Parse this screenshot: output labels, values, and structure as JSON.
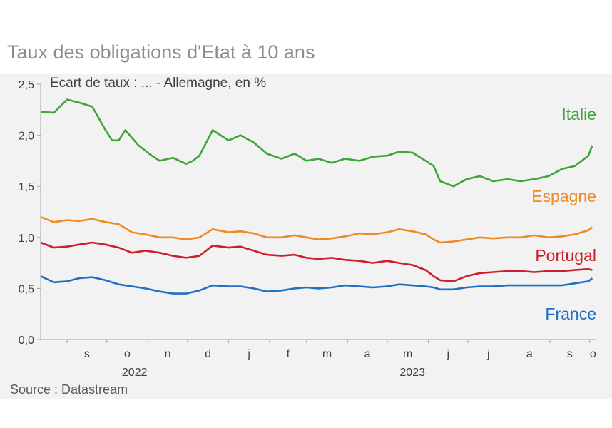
{
  "title": "Taux des obligations d'Etat à 10 ans",
  "source": "Source : Datastream",
  "chart_data": {
    "type": "line",
    "subtitle": "Ecart de taux : ... - Allemagne, en %",
    "ylim": [
      0,
      2.5
    ],
    "yticks": [
      "0,0",
      "0,5",
      "1,0",
      "1,5",
      "2,0",
      "2,5"
    ],
    "ytick_values": [
      0,
      0.5,
      1.0,
      1.5,
      2.0,
      2.5
    ],
    "x_range": [
      "2022-08-12",
      "2023-10-06"
    ],
    "month_ticks": [
      "s",
      "o",
      "n",
      "d",
      "j",
      "f",
      "m",
      "a",
      "m",
      "j",
      "j",
      "a",
      "s",
      "o"
    ],
    "years": [
      "2022",
      "2023"
    ],
    "grid": false,
    "series": [
      {
        "name": "Italie",
        "color": "#3ea639",
        "x": [
          "2022-08-12",
          "2022-08-22",
          "2022-09-01",
          "2022-09-10",
          "2022-09-20",
          "2022-09-30",
          "2022-10-05",
          "2022-10-10",
          "2022-10-15",
          "2022-10-25",
          "2022-11-04",
          "2022-11-10",
          "2022-11-20",
          "2022-11-30",
          "2022-12-05",
          "2022-12-10",
          "2022-12-20",
          "2023-01-01",
          "2023-01-10",
          "2023-01-20",
          "2023-01-30",
          "2023-02-10",
          "2023-02-20",
          "2023-03-01",
          "2023-03-10",
          "2023-03-20",
          "2023-03-30",
          "2023-04-10",
          "2023-04-20",
          "2023-05-01",
          "2023-05-10",
          "2023-05-20",
          "2023-05-30",
          "2023-06-05",
          "2023-06-10",
          "2023-06-20",
          "2023-06-30",
          "2023-07-10",
          "2023-07-20",
          "2023-07-31",
          "2023-08-10",
          "2023-08-20",
          "2023-08-31",
          "2023-09-10",
          "2023-09-20",
          "2023-09-30",
          "2023-10-03"
        ],
        "values": [
          2.23,
          2.22,
          2.35,
          2.32,
          2.28,
          2.05,
          1.95,
          1.95,
          2.05,
          1.9,
          1.8,
          1.75,
          1.78,
          1.72,
          1.75,
          1.8,
          2.05,
          1.95,
          2.0,
          1.93,
          1.82,
          1.77,
          1.82,
          1.75,
          1.77,
          1.73,
          1.77,
          1.75,
          1.79,
          1.8,
          1.84,
          1.83,
          1.75,
          1.7,
          1.55,
          1.5,
          1.57,
          1.6,
          1.55,
          1.57,
          1.55,
          1.57,
          1.6,
          1.67,
          1.7,
          1.8,
          1.9
        ]
      },
      {
        "name": "Espagne",
        "color": "#ee8a21",
        "x": [
          "2022-08-12",
          "2022-08-22",
          "2022-09-01",
          "2022-09-10",
          "2022-09-20",
          "2022-09-30",
          "2022-10-10",
          "2022-10-20",
          "2022-10-30",
          "2022-11-10",
          "2022-11-20",
          "2022-11-30",
          "2022-12-10",
          "2022-12-20",
          "2023-01-01",
          "2023-01-10",
          "2023-01-20",
          "2023-01-30",
          "2023-02-10",
          "2023-02-20",
          "2023-03-01",
          "2023-03-10",
          "2023-03-20",
          "2023-03-30",
          "2023-04-10",
          "2023-04-20",
          "2023-05-01",
          "2023-05-10",
          "2023-05-20",
          "2023-05-30",
          "2023-06-05",
          "2023-06-10",
          "2023-06-20",
          "2023-06-30",
          "2023-07-10",
          "2023-07-20",
          "2023-07-31",
          "2023-08-10",
          "2023-08-20",
          "2023-08-31",
          "2023-09-10",
          "2023-09-20",
          "2023-09-30",
          "2023-10-03"
        ],
        "values": [
          1.2,
          1.15,
          1.17,
          1.16,
          1.18,
          1.15,
          1.13,
          1.05,
          1.03,
          1.0,
          1.0,
          0.98,
          1.0,
          1.08,
          1.05,
          1.06,
          1.04,
          1.0,
          1.0,
          1.02,
          1.0,
          0.98,
          0.99,
          1.01,
          1.04,
          1.03,
          1.05,
          1.08,
          1.06,
          1.03,
          0.98,
          0.95,
          0.96,
          0.98,
          1.0,
          0.99,
          1.0,
          1.0,
          1.02,
          1.0,
          1.01,
          1.03,
          1.07,
          1.1
        ]
      },
      {
        "name": "Portugal",
        "color": "#cc1f2b",
        "x": [
          "2022-08-12",
          "2022-08-22",
          "2022-09-01",
          "2022-09-10",
          "2022-09-20",
          "2022-09-30",
          "2022-10-10",
          "2022-10-20",
          "2022-10-30",
          "2022-11-10",
          "2022-11-20",
          "2022-11-30",
          "2022-12-10",
          "2022-12-20",
          "2023-01-01",
          "2023-01-10",
          "2023-01-20",
          "2023-01-30",
          "2023-02-10",
          "2023-02-20",
          "2023-03-01",
          "2023-03-10",
          "2023-03-20",
          "2023-03-30",
          "2023-04-10",
          "2023-04-20",
          "2023-05-01",
          "2023-05-10",
          "2023-05-20",
          "2023-05-30",
          "2023-06-05",
          "2023-06-10",
          "2023-06-20",
          "2023-06-30",
          "2023-07-10",
          "2023-07-20",
          "2023-07-31",
          "2023-08-10",
          "2023-08-20",
          "2023-08-31",
          "2023-09-10",
          "2023-09-20",
          "2023-09-30",
          "2023-10-03"
        ],
        "values": [
          0.95,
          0.9,
          0.91,
          0.93,
          0.95,
          0.93,
          0.9,
          0.85,
          0.87,
          0.85,
          0.82,
          0.8,
          0.82,
          0.92,
          0.9,
          0.91,
          0.87,
          0.83,
          0.82,
          0.83,
          0.8,
          0.79,
          0.8,
          0.78,
          0.77,
          0.75,
          0.77,
          0.75,
          0.73,
          0.68,
          0.62,
          0.58,
          0.57,
          0.62,
          0.65,
          0.66,
          0.67,
          0.67,
          0.66,
          0.67,
          0.67,
          0.68,
          0.69,
          0.68
        ]
      },
      {
        "name": "France",
        "color": "#1f6fc2",
        "x": [
          "2022-08-12",
          "2022-08-22",
          "2022-09-01",
          "2022-09-10",
          "2022-09-20",
          "2022-09-30",
          "2022-10-10",
          "2022-10-20",
          "2022-10-30",
          "2022-11-10",
          "2022-11-20",
          "2022-11-30",
          "2022-12-10",
          "2022-12-20",
          "2023-01-01",
          "2023-01-10",
          "2023-01-20",
          "2023-01-30",
          "2023-02-10",
          "2023-02-20",
          "2023-03-01",
          "2023-03-10",
          "2023-03-20",
          "2023-03-30",
          "2023-04-10",
          "2023-04-20",
          "2023-05-01",
          "2023-05-10",
          "2023-05-20",
          "2023-05-30",
          "2023-06-05",
          "2023-06-10",
          "2023-06-20",
          "2023-06-30",
          "2023-07-10",
          "2023-07-20",
          "2023-07-31",
          "2023-08-10",
          "2023-08-20",
          "2023-08-31",
          "2023-09-10",
          "2023-09-20",
          "2023-09-30",
          "2023-10-03"
        ],
        "values": [
          0.62,
          0.56,
          0.57,
          0.6,
          0.61,
          0.58,
          0.54,
          0.52,
          0.5,
          0.47,
          0.45,
          0.45,
          0.48,
          0.53,
          0.52,
          0.52,
          0.5,
          0.47,
          0.48,
          0.5,
          0.51,
          0.5,
          0.51,
          0.53,
          0.52,
          0.51,
          0.52,
          0.54,
          0.53,
          0.52,
          0.51,
          0.49,
          0.49,
          0.51,
          0.52,
          0.52,
          0.53,
          0.53,
          0.53,
          0.53,
          0.53,
          0.55,
          0.57,
          0.6
        ]
      }
    ]
  }
}
